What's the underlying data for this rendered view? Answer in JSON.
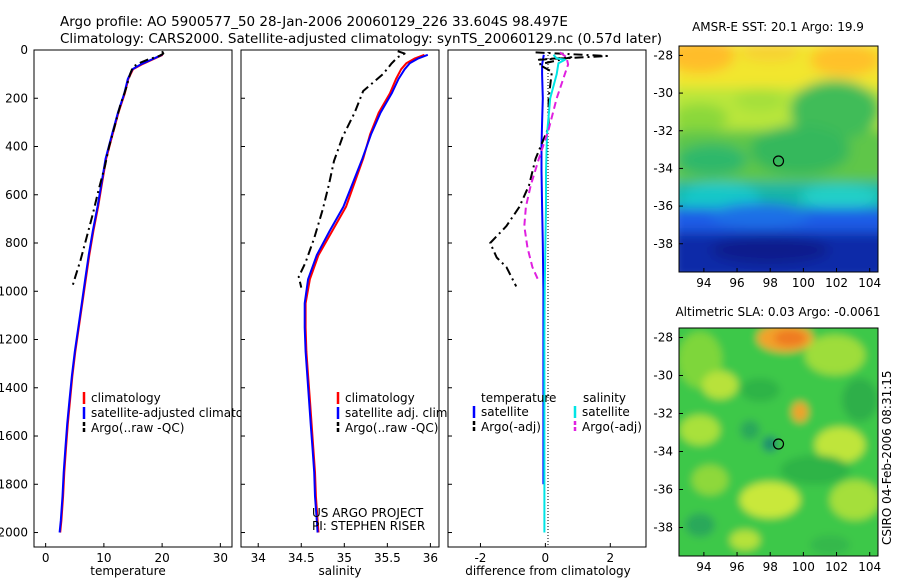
{
  "title": {
    "line1": "Argo profile: AO 5900577_50 28-Jan-2006 20060129_226 33.604S 98.497E",
    "line2": "Climatology: CARS2000. Satellite-adjusted climatology: synTS_20060129.nc (0.57d later)"
  },
  "credit": "CSIRO 04-Feb-2006 08:31:15",
  "colors": {
    "red": "#ff0000",
    "blue": "#0000ff",
    "black": "#000000",
    "cyan": "#00e5e5",
    "magenta": "#e020e0"
  },
  "chart_data": [
    {
      "id": "temperature",
      "type": "line",
      "xlabel": "temperature",
      "xlim": [
        -2,
        32
      ],
      "ylim": [
        2060,
        0
      ],
      "xticks": [
        0,
        10,
        20,
        30
      ],
      "yticks": [
        0,
        200,
        400,
        600,
        800,
        1000,
        1200,
        1400,
        1600,
        1800,
        2000
      ],
      "legend": {
        "position": "lower-right",
        "entries": [
          "climatology",
          "satellite-adjusted climatology",
          "Argo(..raw -QC)"
        ]
      },
      "series": [
        {
          "name": "climatology",
          "color": "red",
          "dash": "",
          "points": [
            [
              20.1,
              20
            ],
            [
              18.8,
              35
            ],
            [
              16.5,
              60
            ],
            [
              15,
              80
            ],
            [
              14.2,
              120
            ],
            [
              13.6,
              180
            ],
            [
              12.5,
              260
            ],
            [
              11.5,
              350
            ],
            [
              10.4,
              450
            ],
            [
              9.7,
              550
            ],
            [
              9,
              650
            ],
            [
              8.2,
              750
            ],
            [
              7.5,
              850
            ],
            [
              6.9,
              950
            ],
            [
              6.3,
              1050
            ],
            [
              5.7,
              1150
            ],
            [
              5.1,
              1250
            ],
            [
              4.6,
              1350
            ],
            [
              4.2,
              1450
            ],
            [
              3.8,
              1550
            ],
            [
              3.5,
              1650
            ],
            [
              3.2,
              1750
            ],
            [
              3,
              1850
            ],
            [
              2.7,
              1950
            ],
            [
              2.5,
              2000
            ]
          ]
        },
        {
          "name": "satellite-adjusted climatology",
          "color": "blue",
          "dash": "",
          "points": [
            [
              20,
              20
            ],
            [
              18.6,
              35
            ],
            [
              16.3,
              60
            ],
            [
              14.9,
              80
            ],
            [
              14.1,
              120
            ],
            [
              13.5,
              180
            ],
            [
              12.4,
              260
            ],
            [
              11.4,
              350
            ],
            [
              10.3,
              450
            ],
            [
              9.6,
              550
            ],
            [
              8.9,
              650
            ],
            [
              8.1,
              750
            ],
            [
              7.4,
              850
            ],
            [
              6.8,
              950
            ],
            [
              6.2,
              1050
            ],
            [
              5.6,
              1150
            ],
            [
              5,
              1250
            ],
            [
              4.5,
              1350
            ],
            [
              4.1,
              1450
            ],
            [
              3.7,
              1550
            ],
            [
              3.4,
              1650
            ],
            [
              3.1,
              1750
            ],
            [
              2.9,
              1850
            ],
            [
              2.6,
              1950
            ],
            [
              2.4,
              2000
            ]
          ]
        },
        {
          "name": "Argo(..raw -QC)",
          "color": "black",
          "dash": "9,4,2,4",
          "points": [
            [
              20,
              5
            ],
            [
              20.2,
              15
            ],
            [
              19.5,
              25
            ],
            [
              17.5,
              40
            ],
            [
              16,
              55
            ],
            [
              15,
              70
            ],
            [
              14.5,
              100
            ],
            [
              13.8,
              160
            ],
            [
              12.8,
              230
            ],
            [
              11.8,
              320
            ],
            [
              10.9,
              400
            ],
            [
              10.2,
              480
            ],
            [
              9.1,
              580
            ],
            [
              8.1,
              680
            ],
            [
              7,
              780
            ],
            [
              6,
              870
            ],
            [
              5.1,
              940
            ],
            [
              4.6,
              980
            ]
          ]
        }
      ]
    },
    {
      "id": "salinity",
      "type": "line",
      "xlabel": "salinity",
      "xlim": [
        33.8,
        36.1
      ],
      "ylim": [
        2060,
        0
      ],
      "xticks": [
        34,
        34.5,
        35,
        35.5,
        36
      ],
      "legend": {
        "position": "lower-right",
        "entries": [
          "climatology",
          "satellite adj. clim.",
          "Argo(..raw -QC)"
        ]
      },
      "annotation": [
        "US ARGO PROJECT",
        "PI: STEPHEN RISER"
      ],
      "series": [
        {
          "name": "climatology",
          "color": "red",
          "dash": "",
          "points": [
            [
              35.93,
              20
            ],
            [
              35.82,
              35
            ],
            [
              35.72,
              55
            ],
            [
              35.66,
              80
            ],
            [
              35.6,
              120
            ],
            [
              35.53,
              180
            ],
            [
              35.4,
              260
            ],
            [
              35.3,
              350
            ],
            [
              35.22,
              450
            ],
            [
              35.12,
              550
            ],
            [
              35.02,
              650
            ],
            [
              34.86,
              750
            ],
            [
              34.7,
              850
            ],
            [
              34.6,
              950
            ],
            [
              34.55,
              1050
            ],
            [
              34.55,
              1150
            ],
            [
              34.56,
              1250
            ],
            [
              34.58,
              1350
            ],
            [
              34.6,
              1450
            ],
            [
              34.62,
              1550
            ],
            [
              34.64,
              1650
            ],
            [
              34.66,
              1750
            ],
            [
              34.67,
              1850
            ],
            [
              34.69,
              1950
            ],
            [
              34.7,
              2000
            ]
          ]
        },
        {
          "name": "satellite adj. clim.",
          "color": "blue",
          "dash": "",
          "points": [
            [
              35.97,
              20
            ],
            [
              35.86,
              35
            ],
            [
              35.76,
              55
            ],
            [
              35.7,
              80
            ],
            [
              35.63,
              120
            ],
            [
              35.55,
              180
            ],
            [
              35.42,
              260
            ],
            [
              35.31,
              350
            ],
            [
              35.21,
              450
            ],
            [
              35.1,
              550
            ],
            [
              34.99,
              650
            ],
            [
              34.83,
              750
            ],
            [
              34.68,
              850
            ],
            [
              34.58,
              950
            ],
            [
              34.54,
              1050
            ],
            [
              34.54,
              1150
            ],
            [
              34.55,
              1250
            ],
            [
              34.57,
              1350
            ],
            [
              34.59,
              1450
            ],
            [
              34.61,
              1550
            ],
            [
              34.63,
              1650
            ],
            [
              34.65,
              1750
            ],
            [
              34.66,
              1850
            ],
            [
              34.68,
              1950
            ],
            [
              34.69,
              2000
            ]
          ]
        },
        {
          "name": "Argo(..raw -QC)",
          "color": "black",
          "dash": "9,4,2,4",
          "points": [
            [
              35.62,
              5
            ],
            [
              35.7,
              15
            ],
            [
              35.62,
              30
            ],
            [
              35.55,
              55
            ],
            [
              35.45,
              100
            ],
            [
              35.22,
              170
            ],
            [
              35.12,
              260
            ],
            [
              34.98,
              360
            ],
            [
              34.88,
              460
            ],
            [
              34.82,
              560
            ],
            [
              34.75,
              660
            ],
            [
              34.65,
              780
            ],
            [
              34.55,
              880
            ],
            [
              34.47,
              940
            ],
            [
              34.5,
              985
            ]
          ]
        }
      ]
    },
    {
      "id": "difference",
      "type": "line",
      "xlabel": "difference from climatology",
      "xlim": [
        -3,
        3.1
      ],
      "ylim": [
        2060,
        0
      ],
      "xticks": [
        -2,
        0,
        2
      ],
      "legend": {
        "position": "lower-center",
        "headers": [
          "temperature",
          "salinity"
        ],
        "entries": [
          "satellite",
          "Argo(-adj)",
          "satellite",
          "Argo(-adj)"
        ]
      },
      "series": [
        {
          "name": "temperature satellite",
          "color": "blue",
          "dash": "",
          "points": [
            [
              -0.05,
              20
            ],
            [
              -0.1,
              60
            ],
            [
              -0.1,
              100
            ],
            [
              -0.08,
              200
            ],
            [
              -0.1,
              300
            ],
            [
              -0.12,
              400
            ],
            [
              -0.12,
              500
            ],
            [
              -0.1,
              650
            ],
            [
              -0.08,
              800
            ],
            [
              -0.07,
              900
            ],
            [
              -0.06,
              1000
            ],
            [
              -0.06,
              1200
            ],
            [
              -0.06,
              1400
            ],
            [
              -0.06,
              1600
            ],
            [
              -0.06,
              1800
            ]
          ]
        },
        {
          "name": "temperature Argo(-adj)",
          "color": "black",
          "dash": "9,4,2,4",
          "points": [
            [
              -0.3,
              10
            ],
            [
              1.9,
              25
            ],
            [
              -0.2,
              40
            ],
            [
              0.8,
              30
            ],
            [
              -0.2,
              60
            ],
            [
              0.2,
              90
            ],
            [
              0.1,
              200
            ],
            [
              0.1,
              320
            ],
            [
              -0.3,
              450
            ],
            [
              -0.5,
              560
            ],
            [
              -0.8,
              650
            ],
            [
              -1.2,
              730
            ],
            [
              -1.7,
              800
            ],
            [
              -1.5,
              860
            ],
            [
              -1.2,
              900
            ],
            [
              -0.9,
              980
            ]
          ]
        },
        {
          "name": "salinity satellite",
          "color": "cyan",
          "dash": "",
          "points": [
            [
              0.25,
              20
            ],
            [
              0.35,
              35
            ],
            [
              0.6,
              40
            ],
            [
              0.4,
              55
            ],
            [
              0.35,
              100
            ],
            [
              0.15,
              200
            ],
            [
              0.05,
              350
            ],
            [
              0.02,
              500
            ],
            [
              0.02,
              650
            ],
            [
              0,
              800
            ],
            [
              -0.02,
              1000
            ],
            [
              -0.03,
              1200
            ],
            [
              -0.03,
              1400
            ],
            [
              -0.03,
              1600
            ],
            [
              -0.03,
              1800
            ],
            [
              -0.03,
              2000
            ]
          ]
        },
        {
          "name": "salinity Argo(-adj)",
          "color": "magenta",
          "dash": "7,4",
          "points": [
            [
              0.45,
              10
            ],
            [
              0.65,
              30
            ],
            [
              0.7,
              60
            ],
            [
              0.55,
              120
            ],
            [
              0.35,
              200
            ],
            [
              0.1,
              330
            ],
            [
              -0.2,
              450
            ],
            [
              -0.45,
              560
            ],
            [
              -0.6,
              650
            ],
            [
              -0.65,
              730
            ],
            [
              -0.55,
              820
            ],
            [
              -0.4,
              900
            ],
            [
              -0.2,
              960
            ]
          ]
        }
      ]
    },
    {
      "id": "sst-map",
      "type": "heatmap",
      "title": "AMSR-E SST: 20.1 Argo: 19.9",
      "xlim": [
        92.5,
        104.5
      ],
      "ylim": [
        -39.5,
        -27.5
      ],
      "xticks": [
        94,
        96,
        98,
        100,
        102,
        104
      ],
      "yticks": [
        -28,
        -30,
        -32,
        -34,
        -36,
        -38
      ],
      "marker": {
        "lon": 98.497,
        "lat": -33.604
      }
    },
    {
      "id": "sla-map",
      "type": "heatmap",
      "title": "Altimetric SLA: 0.03 Argo: -0.0061",
      "xlim": [
        92.5,
        104.5
      ],
      "ylim": [
        -39.5,
        -27.5
      ],
      "xticks": [
        94,
        96,
        98,
        100,
        102,
        104
      ],
      "yticks": [
        -28,
        -30,
        -32,
        -34,
        -36,
        -38
      ],
      "marker": {
        "lon": 98.497,
        "lat": -33.604
      }
    }
  ]
}
